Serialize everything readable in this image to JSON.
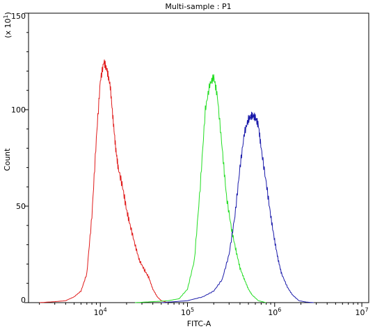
{
  "chart_data": {
    "type": "line",
    "title": "Multi-sample : P1",
    "xlabel": "FITC-A",
    "ylabel": "Count",
    "y_multiplier_label": "(x 10",
    "y_multiplier_exp": "1",
    "y_multiplier_close": ")",
    "x_scale": "log",
    "xlim": [
      1500,
      12000000
    ],
    "ylim": [
      0,
      150
    ],
    "x_ticks": [
      {
        "value": 10000,
        "base": "10",
        "exp": "4"
      },
      {
        "value": 100000,
        "base": "10",
        "exp": "5"
      },
      {
        "value": 1000000,
        "base": "10",
        "exp": "6"
      },
      {
        "value": 10000000,
        "base": "10",
        "exp": "7"
      }
    ],
    "y_ticks": [
      0,
      50,
      100,
      150
    ],
    "grid": false,
    "series": [
      {
        "color": "#e01a1a",
        "x": [
          2000,
          3000,
          4000,
          5000,
          6000,
          7000,
          8000,
          9000,
          10000,
          11000,
          12000,
          13000,
          14000,
          15000,
          16000,
          18000,
          20000,
          22000,
          25000,
          28000,
          32000,
          36000,
          40000,
          45000,
          50000,
          60000
        ],
        "y": [
          0,
          0.5,
          1,
          3,
          6,
          15,
          45,
          85,
          115,
          125,
          120,
          112,
          95,
          80,
          70,
          60,
          48,
          40,
          30,
          22,
          17,
          13,
          7,
          3,
          1,
          0
        ]
      },
      {
        "color": "#22dd22",
        "x": [
          25000,
          40000,
          60000,
          80000,
          100000,
          120000,
          140000,
          160000,
          180000,
          200000,
          220000,
          250000,
          280000,
          320000,
          360000,
          400000,
          450000,
          500000,
          550000,
          650000,
          800000
        ],
        "y": [
          0,
          0.5,
          1,
          2,
          7,
          22,
          60,
          100,
          113,
          117,
          107,
          80,
          55,
          38,
          27,
          18,
          12,
          7,
          4,
          1,
          0
        ]
      },
      {
        "color": "#1a1aaa",
        "x": [
          50000,
          100000,
          150000,
          200000,
          250000,
          300000,
          350000,
          400000,
          450000,
          500000,
          550000,
          600000,
          650000,
          700000,
          800000,
          900000,
          1000000,
          1100000,
          1200000,
          1400000,
          1600000,
          1900000,
          2300000,
          2800000
        ],
        "y": [
          0,
          1,
          3,
          6,
          12,
          25,
          45,
          70,
          88,
          95,
          97,
          96,
          92,
          80,
          62,
          45,
          32,
          22,
          15,
          8,
          4,
          1,
          0.3,
          0
        ]
      }
    ]
  }
}
